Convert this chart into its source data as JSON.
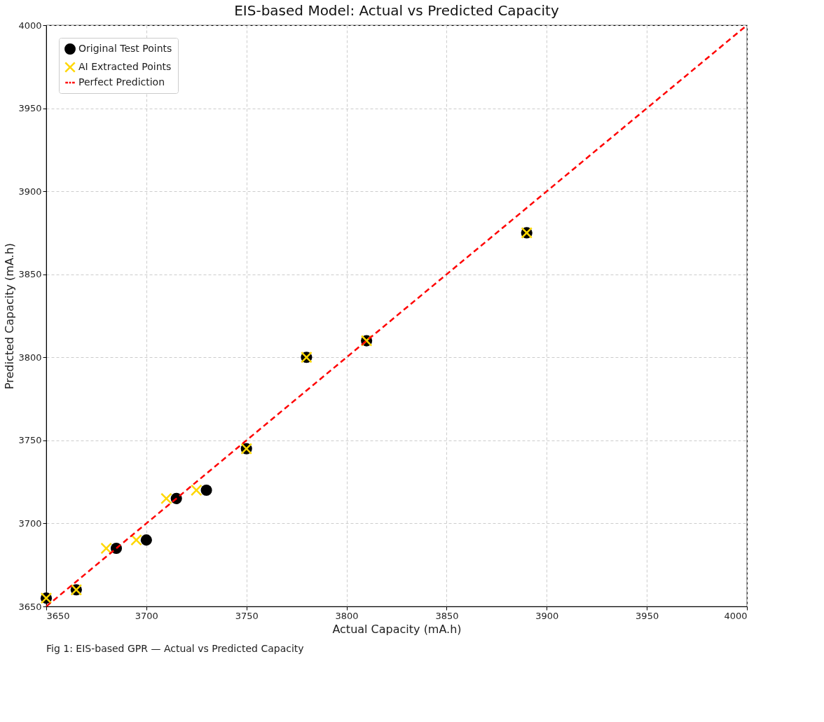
{
  "chart_data": {
    "type": "scatter",
    "title": "EIS-based Model: Actual vs Predicted Capacity",
    "xlabel": "Actual Capacity (mA.h)",
    "ylabel": "Predicted Capacity (mA.h)",
    "xlim": [
      3650,
      4000
    ],
    "ylim": [
      3650,
      4000
    ],
    "xticks": [
      3650,
      3700,
      3750,
      3800,
      3850,
      3900,
      3950,
      4000
    ],
    "yticks": [
      3650,
      3700,
      3750,
      3800,
      3850,
      3900,
      3950,
      4000
    ],
    "grid": true,
    "legend": "top left",
    "series": [
      {
        "name": "Original Test Points",
        "marker": "circle",
        "color": "#000000",
        "x": [
          3650,
          3665,
          3685,
          3700,
          3715,
          3730,
          3750,
          3780,
          3810,
          3890
        ],
        "values": [
          3655,
          3660,
          3685,
          3690,
          3715,
          3720,
          3745,
          3800,
          3810,
          3875
        ]
      },
      {
        "name": "AI Extracted Points",
        "marker": "cross",
        "color": "#ffd700",
        "x": [
          3650,
          3665,
          3680,
          3695,
          3710,
          3725,
          3750,
          3780,
          3810,
          3890
        ],
        "values": [
          3655,
          3660,
          3685,
          3690,
          3715,
          3720,
          3745,
          3800,
          3810,
          3875
        ]
      },
      {
        "name": "Perfect Prediction",
        "type": "line",
        "line_style": "dashed",
        "marker": "none",
        "color": "#ff0000",
        "x": [
          3650,
          4000
        ],
        "values": [
          3650,
          4000
        ]
      }
    ],
    "annotations": [
      "Fig 1: EIS-based GPR — Actual vs Predicted Capacity"
    ]
  }
}
